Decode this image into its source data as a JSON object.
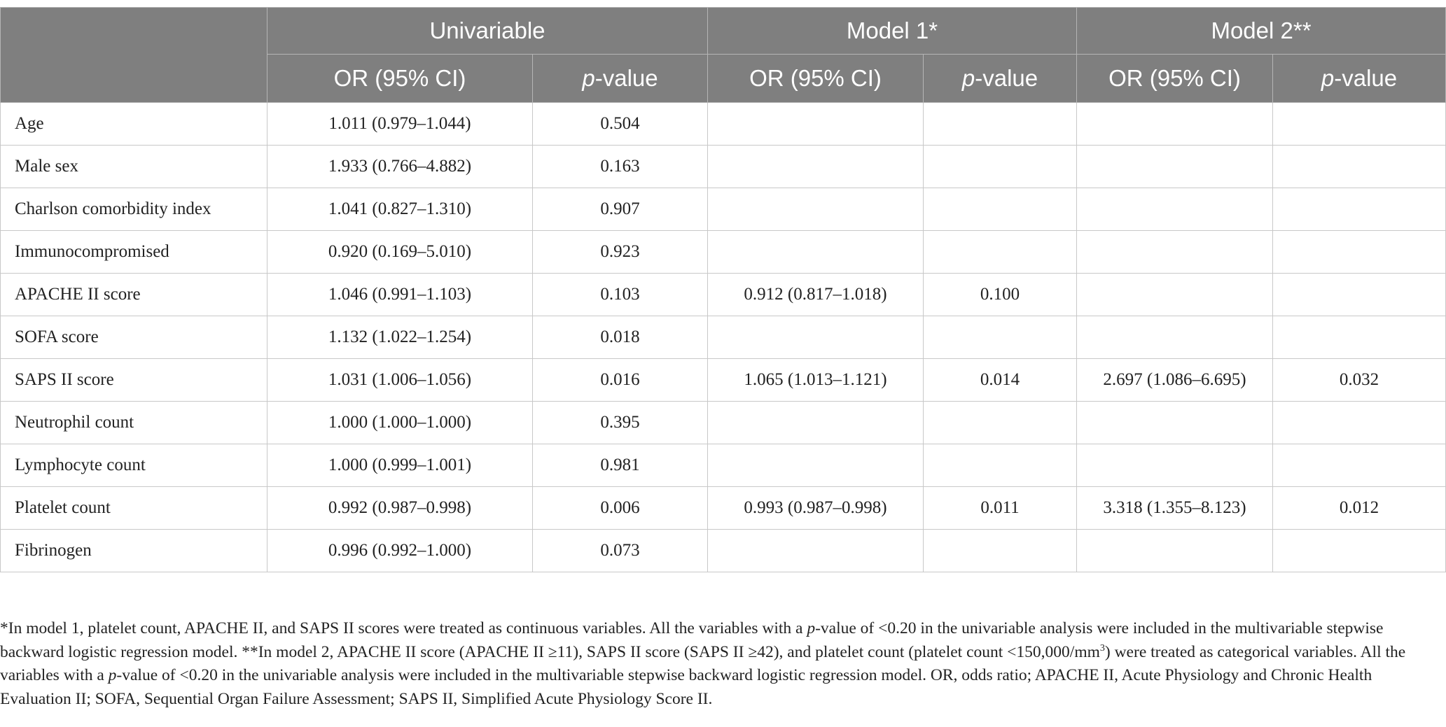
{
  "table": {
    "group_headers": [
      "Univariable",
      "Model 1*",
      "Model 2**"
    ],
    "sub_headers": [
      [
        {
          "text": "OR (95% CI)"
        }
      ],
      [
        {
          "text": "p",
          "style": "italic"
        },
        {
          "text": "-value"
        }
      ],
      [
        {
          "text": "OR (95% CI)"
        }
      ],
      [
        {
          "text": "p",
          "style": "italic"
        },
        {
          "text": "-value"
        }
      ],
      [
        {
          "text": "OR (95% CI)"
        }
      ],
      [
        {
          "text": "p",
          "style": "italic"
        },
        {
          "text": "-value"
        }
      ]
    ],
    "rows": [
      [
        "Age",
        "1.011 (0.979–1.044)",
        "0.504",
        null,
        null,
        null,
        null
      ],
      [
        "Male sex",
        "1.933 (0.766–4.882)",
        "0.163",
        null,
        null,
        null,
        null
      ],
      [
        "Charlson comorbidity index",
        "1.041 (0.827–1.310)",
        "0.907",
        null,
        null,
        null,
        null
      ],
      [
        "Immunocompromised",
        "0.920 (0.169–5.010)",
        "0.923",
        null,
        null,
        null,
        null
      ],
      [
        "APACHE II score",
        "1.046 (0.991–1.103)",
        "0.103",
        "0.912 (0.817–1.018)",
        "0.100",
        null,
        null
      ],
      [
        "SOFA score",
        "1.132 (1.022–1.254)",
        "0.018",
        null,
        null,
        null,
        null
      ],
      [
        "SAPS II score",
        "1.031 (1.006–1.056)",
        "0.016",
        "1.065 (1.013–1.121)",
        "0.014",
        "2.697 (1.086–6.695)",
        "0.032"
      ],
      [
        "Neutrophil count",
        "1.000 (1.000–1.000)",
        "0.395",
        null,
        null,
        null,
        null
      ],
      [
        "Lymphocyte count",
        "1.000 (0.999–1.001)",
        "0.981",
        null,
        null,
        null,
        null
      ],
      [
        "Platelet count",
        "0.992 (0.987–0.998)",
        "0.006",
        "0.993 (0.987–0.998)",
        "0.011",
        "3.318 (1.355–8.123)",
        "0.012"
      ],
      [
        "Fibrinogen",
        "0.996 (0.992–1.000)",
        "0.073",
        null,
        null,
        null,
        null
      ]
    ]
  },
  "footnote": [
    {
      "text": "*In model 1, platelet count, APACHE II, and SAPS II scores were treated as continuous variables. All the variables with a "
    },
    {
      "text": "p",
      "style": "italic"
    },
    {
      "text": "-value of <0.20 in the univariable analysis were included in the multivariable stepwise backward logistic regression model. **In model 2, APACHE II score (APACHE II ≥11), SAPS II score (SAPS II ≥42), and platelet count (platelet count <150,000/mm"
    },
    {
      "text": "3",
      "style": "sup"
    },
    {
      "text": ") were treated as categorical variables. All the variables with a "
    },
    {
      "text": "p",
      "style": "italic"
    },
    {
      "text": "-value of <0.20 in the univariable analysis were included in the multivariable stepwise backward logistic regression model. OR, odds ratio; APACHE II, Acute Physiology and Chronic Health Evaluation II; SOFA, Sequential Organ Failure Assessment; SAPS II, Simplified Acute Physiology Score II."
    }
  ]
}
